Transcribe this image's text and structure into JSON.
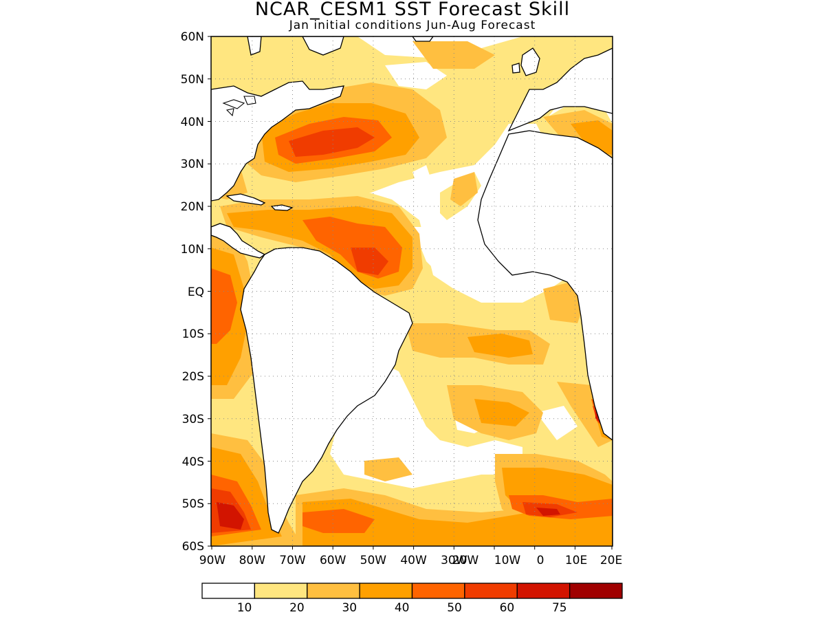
{
  "title": "NCAR_CESM1 SST Forecast Skill",
  "subtitle": "Jan initial conditions  Jun-Aug Forecast",
  "lat_labels": [
    "60N",
    "50N",
    "40N",
    "30N",
    "20N",
    "10N",
    "EQ",
    "10S",
    "20S",
    "30S",
    "40S",
    "50S",
    "60S"
  ],
  "lon_labels": [
    "90W",
    "80W",
    "70W",
    "60W",
    "50W",
    "40W",
    "30W",
    "20W",
    "10W",
    "0",
    "10E",
    "20E"
  ],
  "colorbar": {
    "labels": [
      "10",
      "20",
      "30",
      "40",
      "50",
      "60",
      "75"
    ],
    "colors": [
      "#ffffff",
      "#ffe680",
      "#ffbf40",
      "#ffa000",
      "#ff6400",
      "#f03c00",
      "#d21400",
      "#a00000"
    ]
  }
}
